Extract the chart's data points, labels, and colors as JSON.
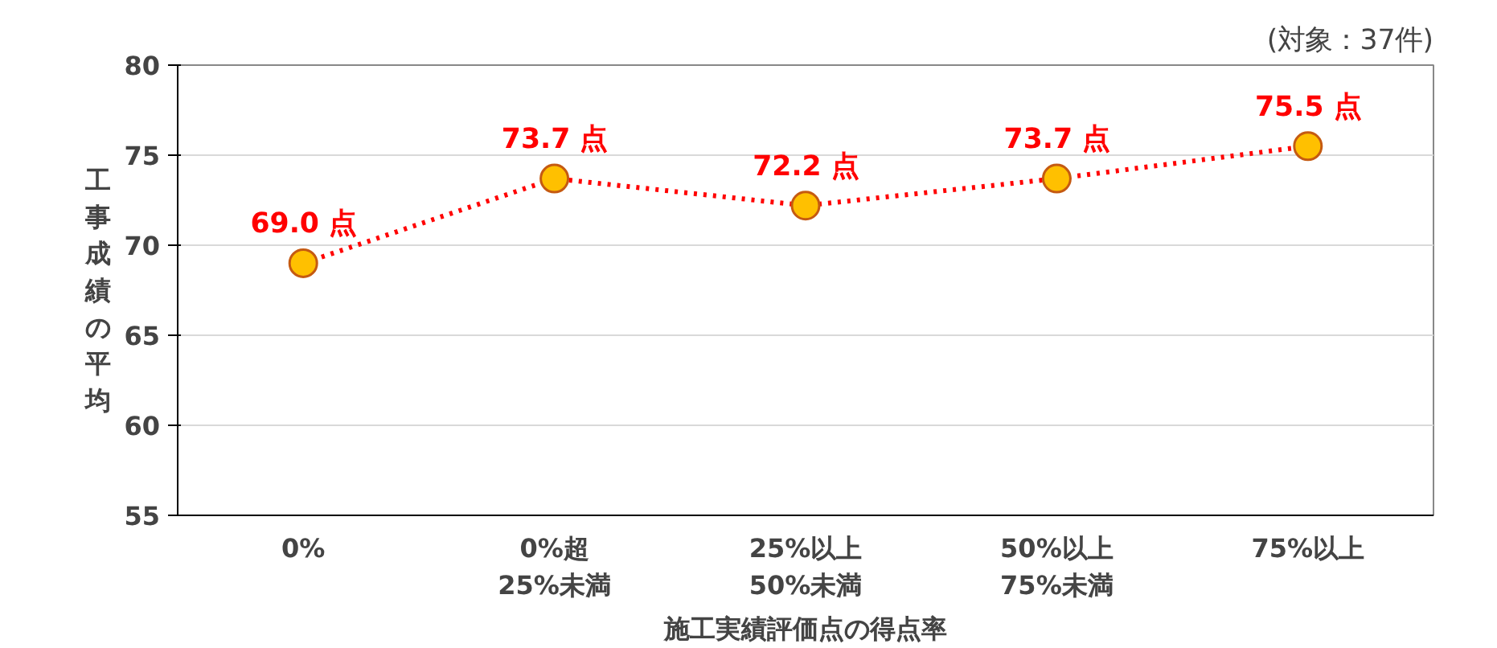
{
  "chart_data": {
    "type": "line",
    "xlabel": "施工実績評価点の得点率",
    "ylabel": "工事成績の平均",
    "categories": [
      "0%",
      "0%超\n25%未満",
      "25%以上\n50%未満",
      "50%以上\n75%未満",
      "75%以上"
    ],
    "series": [
      {
        "color": "#ff0000",
        "values": [
          69.0,
          73.7,
          72.2,
          73.7,
          75.5
        ],
        "value_labels": [
          "69.0 点",
          "73.7 点",
          "72.2 点",
          "73.7 点",
          "75.5 点"
        ]
      }
    ],
    "ylim": [
      55,
      80
    ],
    "yticks": [
      55,
      60,
      65,
      70,
      75,
      80
    ],
    "grid": "y",
    "marker": "circle",
    "line_style": "dotted",
    "annotations": [
      "(対象：37件)"
    ]
  }
}
